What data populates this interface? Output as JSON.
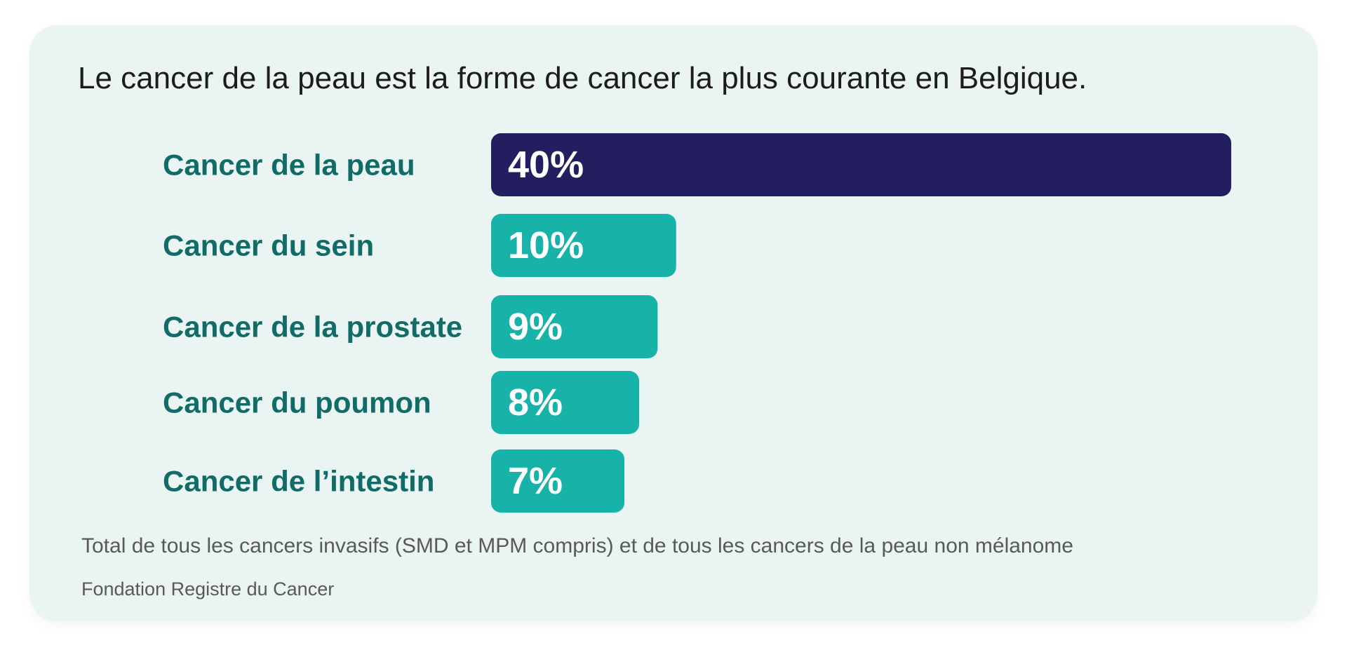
{
  "chart_data": {
    "type": "bar",
    "orientation": "horizontal",
    "title": "Le cancer de la peau est la forme de cancer la plus courante en Belgique.",
    "categories": [
      "Cancer de la peau",
      "Cancer du sein",
      "Cancer de la prostate",
      "Cancer du poumon",
      "Cancer de l’intestin"
    ],
    "values": [
      40,
      10,
      9,
      8,
      7
    ],
    "value_labels": [
      "40%",
      "10%",
      "9%",
      "8%",
      "7%"
    ],
    "unit": "%",
    "colors": [
      "#221e5f",
      "#17b3a8",
      "#17b3a8",
      "#17b3a8",
      "#17b3a8"
    ],
    "label_color": "#116b66",
    "value_label_color": "#ffffff",
    "grid": false,
    "legend": "none"
  },
  "footnote": "Total de tous les cancers invasifs (SMD et MPM compris) et de tous les cancers de la peau non mélanome",
  "source": "Fondation Registre du Cancer"
}
